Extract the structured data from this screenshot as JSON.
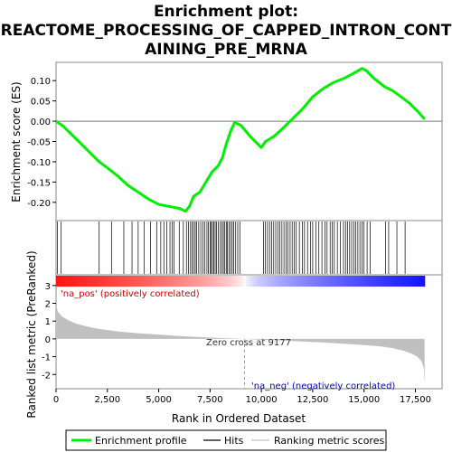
{
  "chart_data": {
    "type": "line",
    "title_lines": [
      "Enrichment plot:",
      "REACTOME_PROCESSING_OF_CAPPED_INTRON_CONT",
      "AINING_PRE_MRNA"
    ],
    "xlabel": "Rank in Ordered Dataset",
    "x_ticks": [
      0,
      2500,
      5000,
      7500,
      10000,
      12500,
      15000,
      17500
    ],
    "x_tick_labels": [
      "0",
      "2,500",
      "5,000",
      "7,500",
      "10,000",
      "12,500",
      "15,000",
      "17,500"
    ],
    "xlim": [
      0,
      18800
    ],
    "es_panel": {
      "ylabel": "Enrichment score (ES)",
      "ylim": [
        -0.245,
        0.145
      ],
      "y_ticks": [
        0.1,
        0.05,
        0.0,
        -0.05,
        -0.1,
        -0.15,
        -0.2
      ],
      "y_tick_labels": [
        "0.10",
        "0.05",
        "0.00",
        "-0.05",
        "-0.10",
        "-0.15",
        "-0.20"
      ],
      "color": "#00ee00",
      "series": [
        {
          "x": [
            0,
            300,
            700,
            1200,
            1700,
            2100,
            2500,
            3000,
            3500,
            4000,
            4500,
            5000,
            5500,
            6000,
            6300,
            6500,
            6700,
            7000,
            7300,
            7600,
            7900,
            8100,
            8300,
            8500,
            8700,
            9000,
            9500,
            10000,
            10200,
            10600,
            11000,
            11500,
            12000,
            12500,
            13000,
            13500,
            14000,
            14500,
            14900,
            15100,
            15500,
            16000,
            16400,
            16800,
            17200,
            17600,
            17950
          ],
          "y": [
            0.0,
            -0.01,
            -0.03,
            -0.055,
            -0.08,
            -0.1,
            -0.115,
            -0.135,
            -0.158,
            -0.175,
            -0.192,
            -0.205,
            -0.21,
            -0.215,
            -0.222,
            -0.21,
            -0.185,
            -0.175,
            -0.15,
            -0.125,
            -0.11,
            -0.09,
            -0.055,
            -0.025,
            -0.003,
            -0.01,
            -0.04,
            -0.065,
            -0.05,
            -0.038,
            -0.02,
            0.005,
            0.03,
            0.06,
            0.08,
            0.095,
            0.105,
            0.118,
            0.13,
            0.125,
            0.105,
            0.085,
            0.075,
            0.06,
            0.045,
            0.025,
            0.005
          ]
        }
      ]
    },
    "hits_panel": {
      "color": "#000000",
      "hit_ranks": [
        60,
        250,
        2100,
        2700,
        3300,
        3700,
        4000,
        4300,
        4600,
        4900,
        5100,
        5250,
        5400,
        5550,
        5650,
        5750,
        6000,
        6200,
        6350,
        6450,
        6550,
        6620,
        6700,
        6780,
        6850,
        6950,
        7050,
        7150,
        7250,
        7350,
        7420,
        7500,
        7560,
        7620,
        7680,
        7750,
        7820,
        7900,
        8000,
        8080,
        8150,
        8220,
        8290,
        8350,
        8420,
        8500,
        8580,
        8650,
        8750,
        8850,
        8950,
        10100,
        10200,
        10300,
        10400,
        10500,
        10600,
        10700,
        10800,
        10900,
        11000,
        11100,
        11200,
        11300,
        11400,
        11500,
        11600,
        11700,
        11850,
        12000,
        12100,
        12250,
        12400,
        12500,
        12650,
        12800,
        12950,
        13100,
        13200,
        13350,
        13450,
        13550,
        13700,
        13850,
        14000,
        14100,
        14200,
        14300,
        14400,
        14500,
        14600,
        14700,
        14800,
        14900,
        15000,
        15150,
        15300,
        16050,
        16200,
        16600,
        17000
      ]
    },
    "metric_panel": {
      "ylabel": "Ranked list metric (PreRanked)",
      "ylim": [
        -2.8,
        3.6
      ],
      "y_ticks": [
        3,
        2,
        1,
        0,
        -1,
        -2
      ],
      "y_tick_labels": [
        "3",
        "2",
        "1",
        "0",
        "-1",
        "-2"
      ],
      "fill_color": "#c0c0c0",
      "zero_cross": 9177,
      "zero_cross_label": "Zero cross at 9177",
      "pos_label": "'na_pos' (positively correlated)",
      "neg_label": "'na_neg' (negatively correlated)",
      "pos_label_color": "#cc0000",
      "neg_label_color": "#0000cc",
      "metric_curve": {
        "x": [
          0,
          100,
          300,
          600,
          1000,
          1500,
          2000,
          3000,
          4000,
          5000,
          6000,
          7000,
          8000,
          9177,
          10000,
          11000,
          12000,
          13000,
          14000,
          15000,
          15800,
          16400,
          16900,
          17300,
          17600,
          17800,
          17900,
          17950
        ],
        "y": [
          1.85,
          1.5,
          1.25,
          1.05,
          0.85,
          0.7,
          0.58,
          0.42,
          0.32,
          0.24,
          0.16,
          0.1,
          0.05,
          0.0,
          -0.05,
          -0.1,
          -0.15,
          -0.2,
          -0.27,
          -0.35,
          -0.42,
          -0.52,
          -0.66,
          -0.82,
          -1.0,
          -1.25,
          -1.6,
          -2.5
        ]
      }
    },
    "legend": {
      "items": [
        {
          "label": "Enrichment profile",
          "color": "#00ee00"
        },
        {
          "label": "Hits",
          "color": "#000000"
        },
        {
          "label": "Ranking metric scores",
          "color": "#c0c0c0"
        }
      ]
    }
  }
}
